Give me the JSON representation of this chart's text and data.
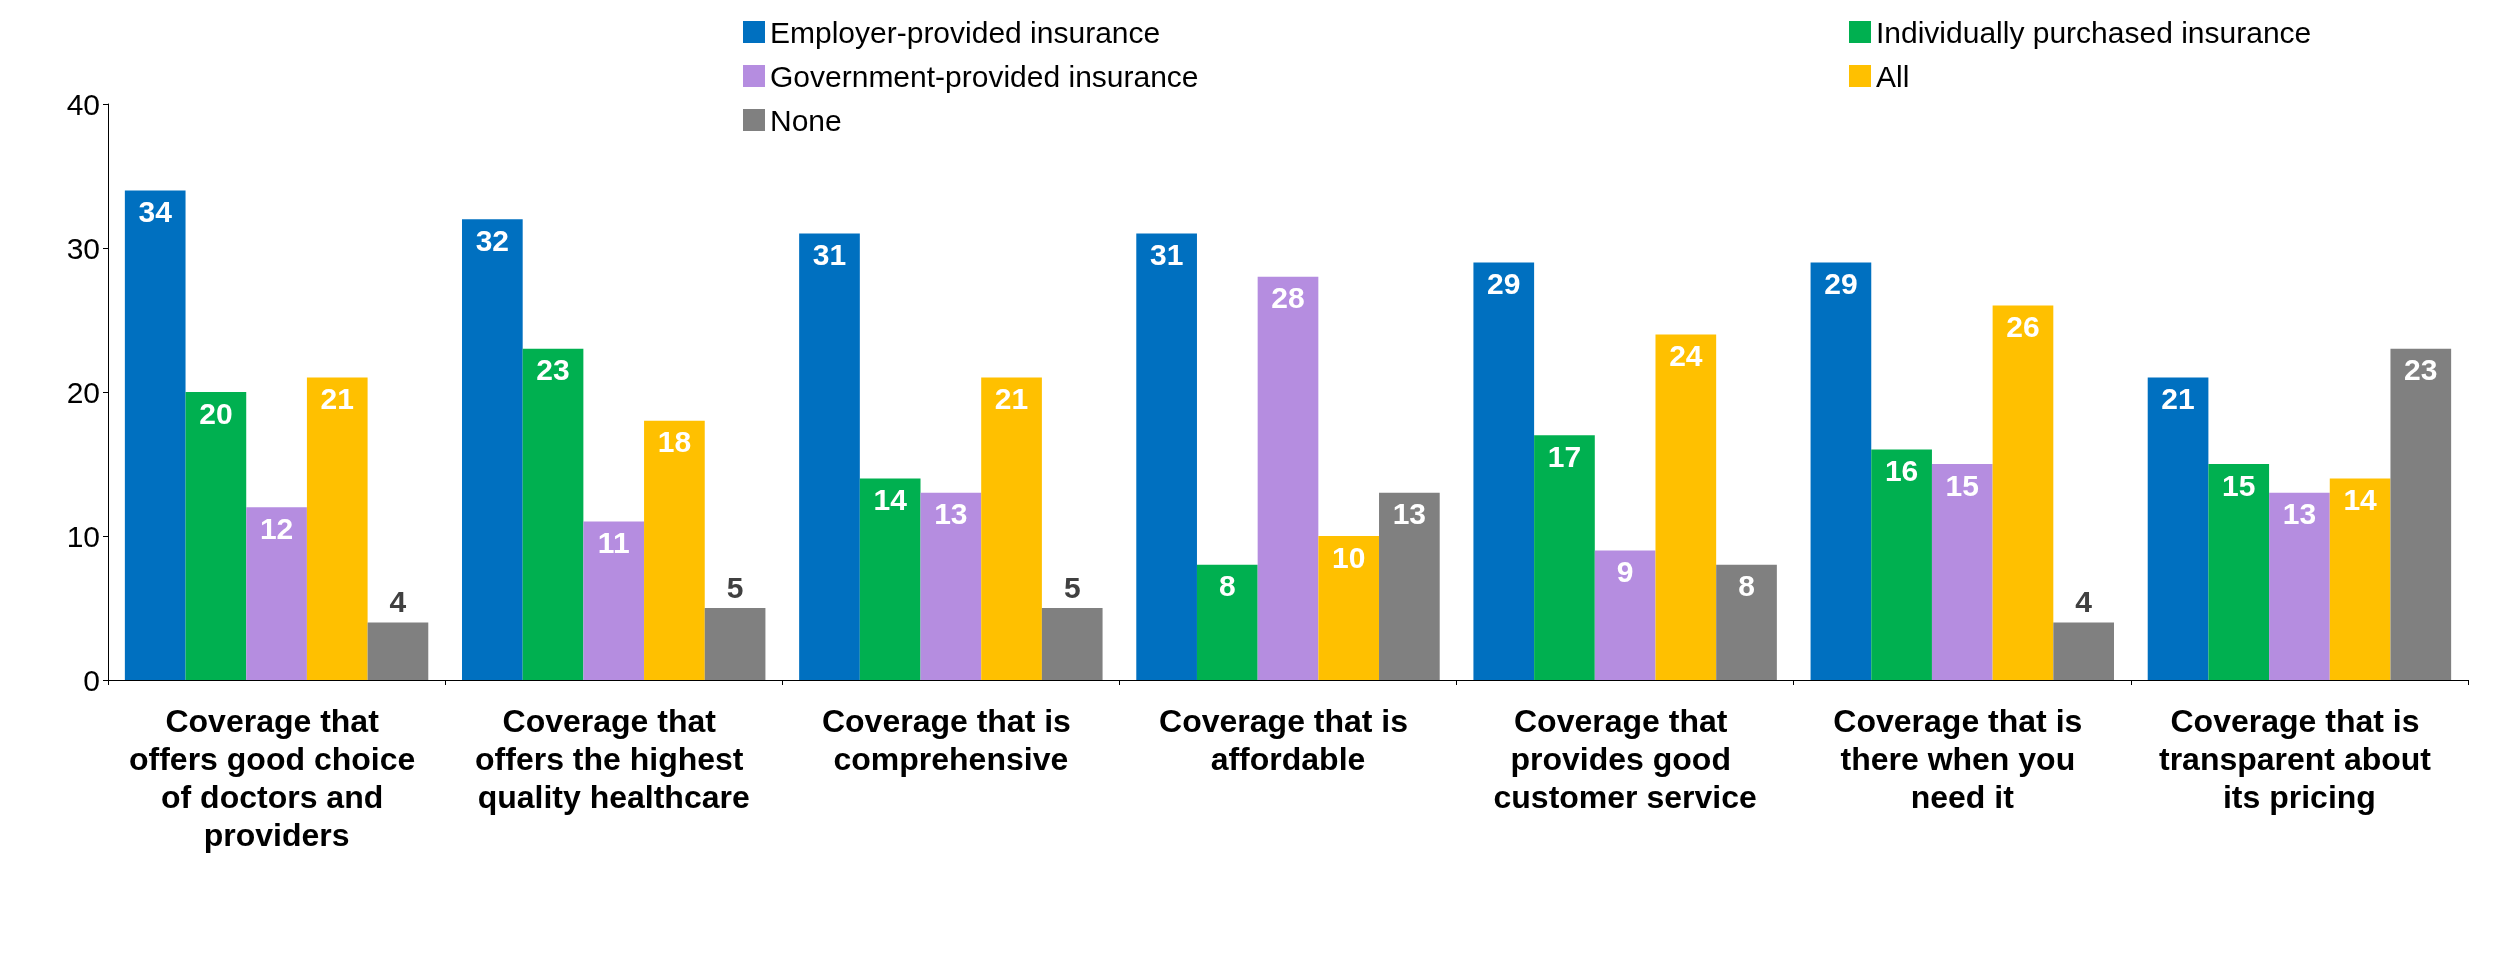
{
  "chart_data": {
    "type": "bar",
    "categories": [
      "Coverage that offers good choice of doctors and providers",
      "Coverage that offers the highest quality healthcare",
      "Coverage that is comprehensive",
      "Coverage that is affordable",
      "Coverage that provides good customer service",
      "Coverage that is there when you need it",
      "Coverage that is transparent about its pricing"
    ],
    "series": [
      {
        "name": "Employer-provided insurance",
        "color": "#0070c0",
        "values": [
          34,
          32,
          31,
          31,
          29,
          29,
          21
        ]
      },
      {
        "name": "Individually purchased insurance",
        "color": "#00b050",
        "values": [
          20,
          23,
          14,
          8,
          17,
          16,
          15
        ]
      },
      {
        "name": "Government-provided insurance",
        "color": "#b58de0",
        "values": [
          12,
          11,
          13,
          28,
          9,
          15,
          13
        ]
      },
      {
        "name": "All",
        "color": "#ffc000",
        "values": [
          21,
          18,
          21,
          10,
          24,
          26,
          14
        ]
      },
      {
        "name": "None",
        "color": "#808080",
        "values": [
          4,
          5,
          5,
          13,
          8,
          4,
          23
        ]
      }
    ],
    "ylim": [
      0,
      40
    ],
    "yticks": [
      0,
      10,
      20,
      30,
      40
    ],
    "grid": false,
    "legend": "top",
    "data_labels": true
  }
}
